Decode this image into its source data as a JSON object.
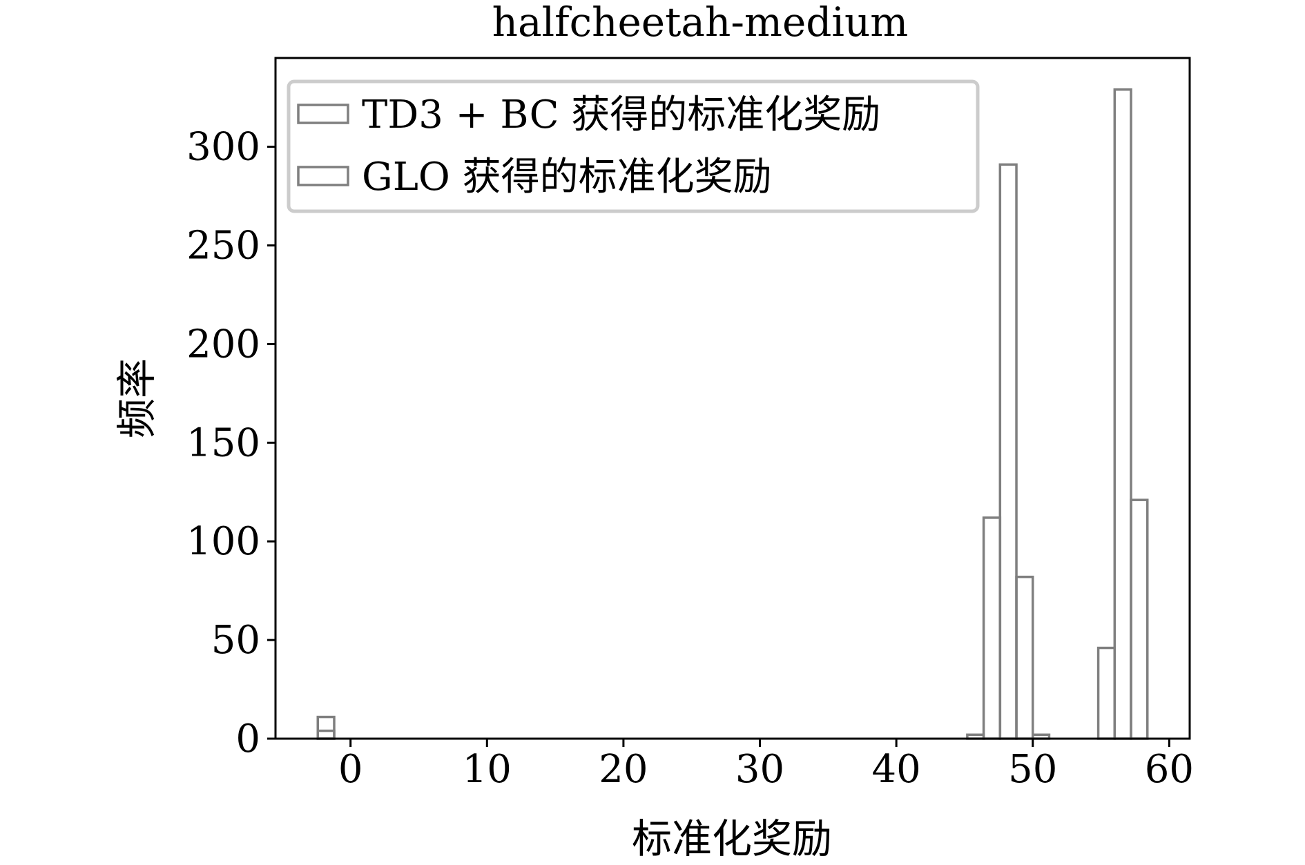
{
  "chart_data": {
    "type": "bar",
    "title": "halfcheetah-medium",
    "xlabel": "标准化奖励",
    "ylabel": "频率",
    "xlim": [
      -5.5,
      61.5
    ],
    "ylim": [
      0,
      345
    ],
    "xticks": [
      0,
      10,
      20,
      30,
      40,
      50,
      60
    ],
    "yticks": [
      0,
      50,
      100,
      150,
      200,
      250,
      300
    ],
    "grid": false,
    "legend_position": "top-left",
    "histtype": "step",
    "series": [
      {
        "name": "TD3 + BC 获得的标准化奖励",
        "color": "#7f7f7f",
        "bins": [
          {
            "x0": -2.4,
            "x1": -1.2,
            "value": 11
          },
          {
            "x0": 45.2,
            "x1": 46.4,
            "value": 2
          },
          {
            "x0": 46.4,
            "x1": 47.6,
            "value": 112
          },
          {
            "x0": 47.6,
            "x1": 48.8,
            "value": 291
          },
          {
            "x0": 48.8,
            "x1": 50.0,
            "value": 82
          },
          {
            "x0": 50.0,
            "x1": 51.2,
            "value": 2
          }
        ]
      },
      {
        "name": "GLO 获得的标准化奖励",
        "color": "#7f7f7f",
        "bins": [
          {
            "x0": -2.4,
            "x1": -1.2,
            "value": 4
          },
          {
            "x0": 54.8,
            "x1": 56.0,
            "value": 46
          },
          {
            "x0": 56.0,
            "x1": 57.2,
            "value": 329
          },
          {
            "x0": 57.2,
            "x1": 58.4,
            "value": 121
          }
        ]
      }
    ]
  }
}
